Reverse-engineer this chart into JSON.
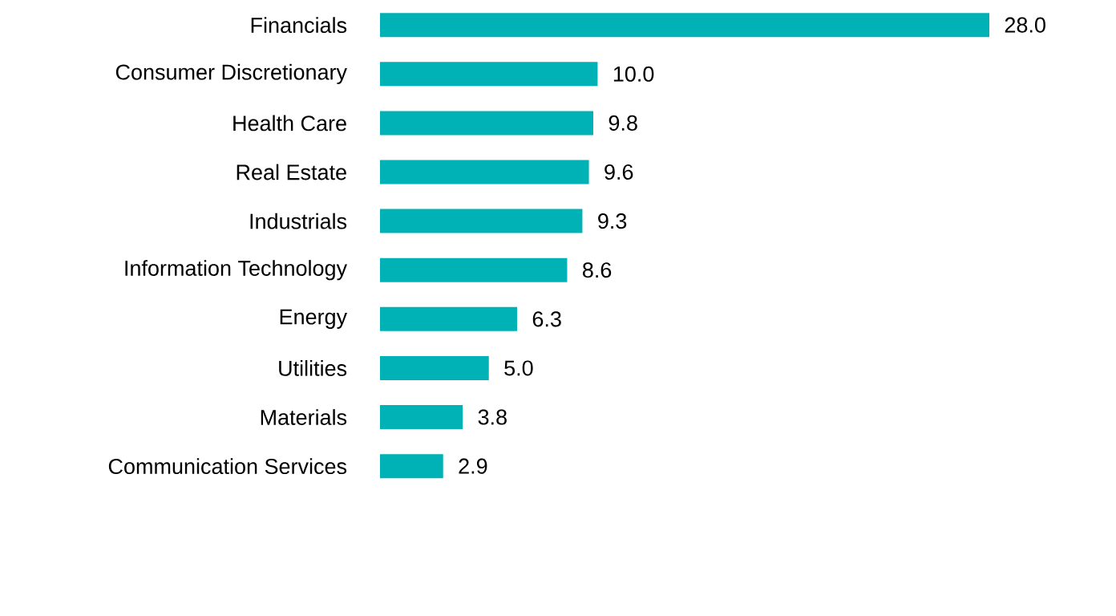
{
  "chart_data": {
    "type": "bar",
    "orientation": "horizontal",
    "categories": [
      "Financials",
      "Consumer Discretionary",
      "Health Care",
      "Real Estate",
      "Industrials",
      "Information Technology",
      "Energy",
      "Utilities",
      "Materials",
      "Communication Services"
    ],
    "values": [
      28.0,
      10.0,
      9.8,
      9.6,
      9.3,
      8.6,
      6.3,
      5.0,
      3.8,
      2.9
    ],
    "value_labels": [
      "28.0",
      "10.0",
      "9.8",
      "9.6",
      "9.3",
      "8.6",
      "6.3",
      "5.0",
      "3.8",
      "2.9"
    ],
    "color": "#00b2b5"
  }
}
